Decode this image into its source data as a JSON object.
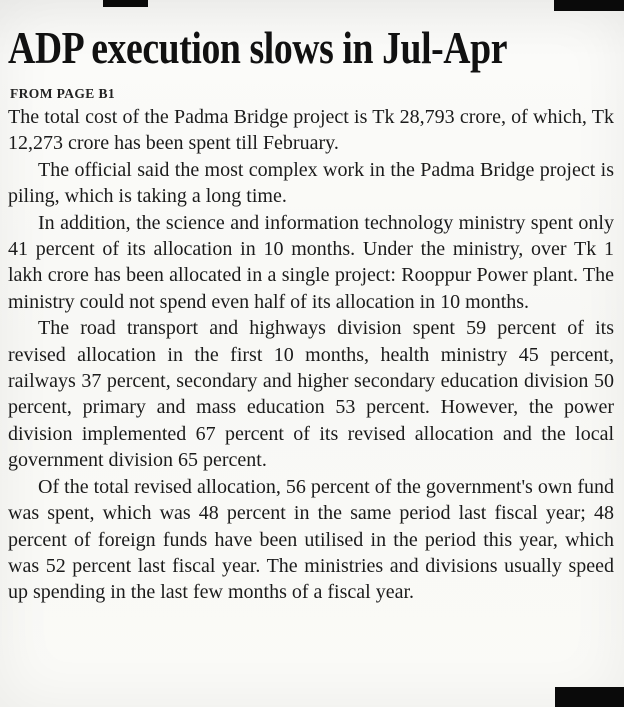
{
  "article": {
    "headline": "ADP execution slows in Jul-Apr",
    "kicker": "FROM PAGE B1",
    "paragraphs": [
      "The total cost of the Padma Bridge project is Tk 28,793 crore, of which, Tk 12,273 crore has been spent till February.",
      "The official said the most complex work in the Padma Bridge project is piling, which is taking a long time.",
      "In addition, the science and information technology ministry spent only 41 percent of its allocation in 10 months. Under the ministry, over Tk 1 lakh crore has been allocated in a single project: Rooppur Power plant. The ministry could not spend even half of its allocation in 10 months.",
      "The road transport and highways division spent 59 percent of its revised allocation in the first 10 months, health ministry 45 percent, railways 37 percent, secondary and higher secondary education division 50 percent, primary and mass education 53 percent. However, the power division implemented 67 percent of its revised allocation and the local government division 65 percent.",
      "Of the total revised allocation, 56 percent of the government's own fund was spent, which was 48 percent in the same period last fiscal year; 48 percent of foreign funds have been utilised in the period this year, which was 52 percent last fiscal year. The ministries and divisions usually speed up spending in the last few months of a fiscal year."
    ]
  },
  "colors": {
    "ink": "#1b1b1b",
    "paper": "#f8f8f5"
  }
}
